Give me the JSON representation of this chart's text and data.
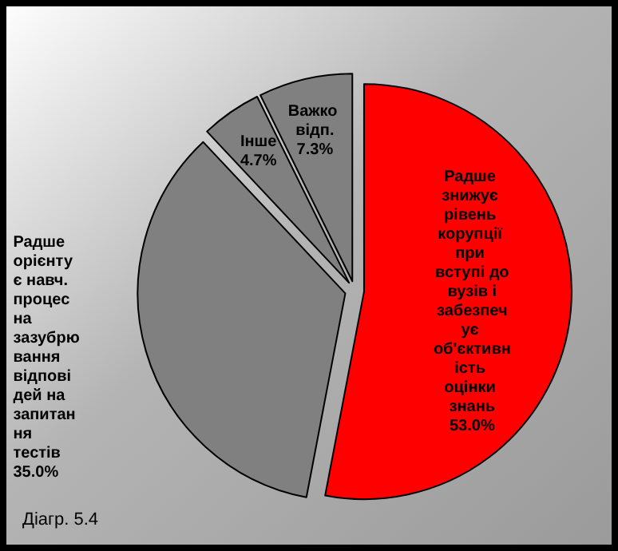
{
  "chart_data": {
    "type": "pie",
    "categories": [
      "Радше знижує рівень корупції при вступі до вузів і забезпечує об'єктивність оцінки знань",
      "Радше орієнтує навч. процес на зазубрювання відповідей на запитання тестів",
      "Інше",
      "Важко відп."
    ],
    "values": [
      53.0,
      35.0,
      4.7,
      7.3
    ],
    "value_labels": [
      "53.0%",
      "35.0%",
      "4.7%",
      "7.3%"
    ],
    "colors": [
      "#ff0000",
      "#808080",
      "#808080",
      "#808080"
    ],
    "legend": false,
    "annotations": [
      "Діагр. 5.4"
    ]
  }
}
